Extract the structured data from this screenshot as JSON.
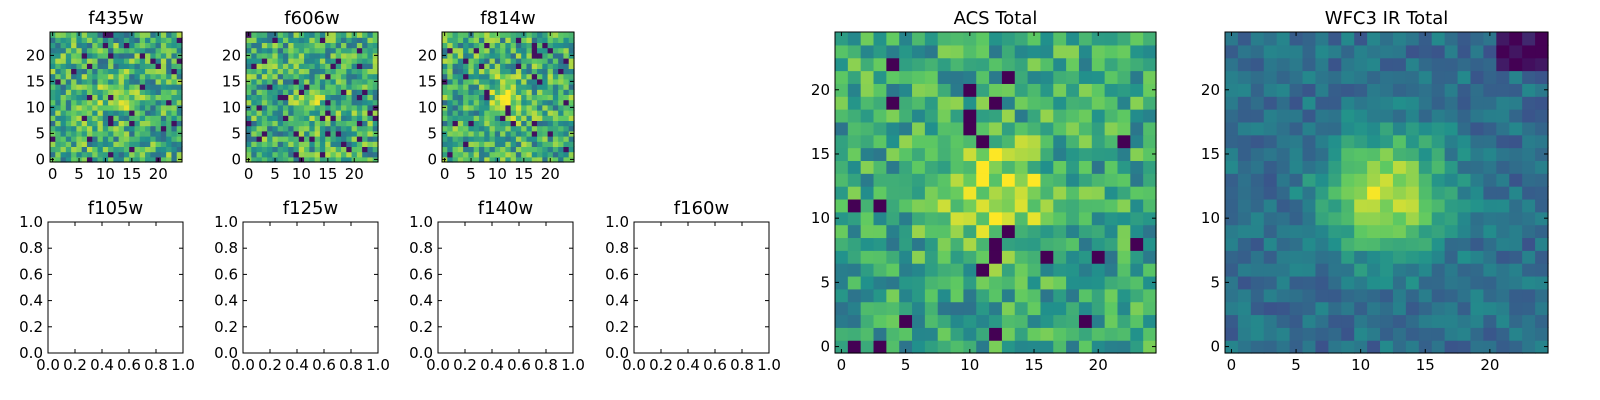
{
  "figure": {
    "colormap": [
      "#440154",
      "#3b528b",
      "#21918c",
      "#5ec962",
      "#fde725"
    ]
  },
  "chart_data": [
    {
      "type": "heatmap",
      "title": "f435w",
      "xticks": [
        "0",
        "5",
        "10",
        "15",
        "20"
      ],
      "yticks": [
        "0",
        "5",
        "10",
        "15",
        "20"
      ],
      "xlim": [
        -0.5,
        24.5
      ],
      "ylim": [
        -0.5,
        24.5
      ],
      "size": 25
    },
    {
      "type": "heatmap",
      "title": "f606w",
      "xticks": [
        "0",
        "5",
        "10",
        "15",
        "20"
      ],
      "yticks": [
        "0",
        "5",
        "10",
        "15",
        "20"
      ],
      "xlim": [
        -0.5,
        24.5
      ],
      "ylim": [
        -0.5,
        24.5
      ],
      "size": 25
    },
    {
      "type": "heatmap",
      "title": "f814w",
      "xticks": [
        "0",
        "5",
        "10",
        "15",
        "20"
      ],
      "yticks": [
        "0",
        "5",
        "10",
        "15",
        "20"
      ],
      "xlim": [
        -0.5,
        24.5
      ],
      "ylim": [
        -0.5,
        24.5
      ],
      "size": 25
    },
    {
      "type": "empty",
      "title": "f105w",
      "xticks": [
        "0.0",
        "0.2",
        "0.4",
        "0.6",
        "0.8",
        "1.0"
      ],
      "yticks": [
        "0.0",
        "0.2",
        "0.4",
        "0.6",
        "0.8",
        "1.0"
      ],
      "xlim": [
        0,
        1
      ],
      "ylim": [
        0,
        1
      ]
    },
    {
      "type": "empty",
      "title": "f125w",
      "xticks": [
        "0.0",
        "0.2",
        "0.4",
        "0.6",
        "0.8",
        "1.0"
      ],
      "yticks": [
        "0.0",
        "0.2",
        "0.4",
        "0.6",
        "0.8",
        "1.0"
      ],
      "xlim": [
        0,
        1
      ],
      "ylim": [
        0,
        1
      ]
    },
    {
      "type": "empty",
      "title": "f140w",
      "xticks": [
        "0.0",
        "0.2",
        "0.4",
        "0.6",
        "0.8",
        "1.0"
      ],
      "yticks": [
        "0.0",
        "0.2",
        "0.4",
        "0.6",
        "0.8",
        "1.0"
      ],
      "xlim": [
        0,
        1
      ],
      "ylim": [
        0,
        1
      ]
    },
    {
      "type": "empty",
      "title": "f160w",
      "xticks": [
        "0.0",
        "0.2",
        "0.4",
        "0.6",
        "0.8",
        "1.0"
      ],
      "yticks": [
        "0.0",
        "0.2",
        "0.4",
        "0.6",
        "0.8",
        "1.0"
      ],
      "xlim": [
        0,
        1
      ],
      "ylim": [
        0,
        1
      ]
    },
    {
      "type": "heatmap",
      "title": "ACS Total",
      "xticks": [
        "0",
        "5",
        "10",
        "15",
        "20"
      ],
      "yticks": [
        "0",
        "5",
        "10",
        "15",
        "20"
      ],
      "xlim": [
        -0.5,
        24.5
      ],
      "ylim": [
        -0.5,
        24.5
      ],
      "size": 25
    },
    {
      "type": "heatmap",
      "title": "WFC3 IR Total",
      "xticks": [
        "0",
        "5",
        "10",
        "15",
        "20"
      ],
      "yticks": [
        "0",
        "5",
        "10",
        "15",
        "20"
      ],
      "xlim": [
        -0.5,
        24.5
      ],
      "ylim": [
        -0.5,
        24.5
      ],
      "size": 25
    }
  ]
}
